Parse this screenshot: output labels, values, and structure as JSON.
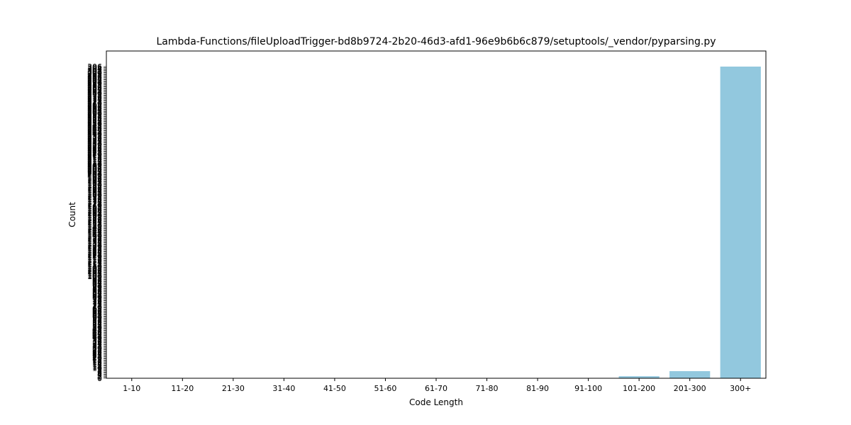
{
  "chart_data": {
    "type": "bar",
    "title": "Lambda-Functions/fileUploadTrigger-bd8b9724-2b20-46d3-afd1-96e9b6b6c879/setuptools/_vendor/pyparsing.py",
    "xlabel": "Code Length",
    "ylabel": "Count",
    "categories": [
      "1-10",
      "11-20",
      "21-30",
      "31-40",
      "41-50",
      "51-60",
      "61-70",
      "71-80",
      "81-90",
      "91-100",
      "101-200",
      "201-300",
      "300+"
    ],
    "values": [
      0,
      0,
      0,
      0,
      0,
      0,
      0,
      0,
      0,
      0,
      2,
      7,
      306
    ],
    "ylim": [
      0,
      306
    ],
    "ytick_step": 1,
    "bar_color": "#92c8de",
    "grid": false,
    "legend": "none"
  }
}
